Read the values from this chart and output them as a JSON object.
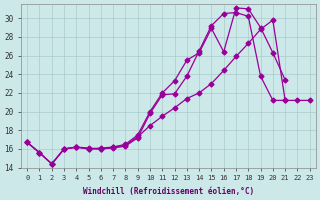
{
  "xlabel": "Windchill (Refroidissement éolien,°C)",
  "background_color": "#cce8e8",
  "grid_color": "#aacccc",
  "line_color": "#990099",
  "yticks": [
    14,
    16,
    18,
    20,
    22,
    24,
    26,
    28,
    30
  ],
  "xticks": [
    0,
    1,
    2,
    3,
    4,
    5,
    6,
    7,
    8,
    9,
    10,
    11,
    12,
    13,
    14,
    15,
    16,
    17,
    18,
    19,
    20,
    21,
    22,
    23
  ],
  "series": [
    {
      "x": [
        0,
        1,
        2,
        3,
        4,
        5,
        6,
        7,
        8,
        9,
        10,
        11,
        12,
        13,
        14,
        15,
        16,
        17,
        18,
        19,
        20,
        21,
        22,
        23
      ],
      "y": [
        16.7,
        15.6,
        14.4,
        16.0,
        16.2,
        16.0,
        16.1,
        16.2,
        16.4,
        17.3,
        18.5,
        19.5,
        20.4,
        21.4,
        22.0,
        23.0,
        24.4,
        25.9,
        27.3,
        28.8,
        29.8,
        21.2,
        21.2,
        21.2
      ]
    },
    {
      "x": [
        0,
        1,
        2,
        3,
        4,
        5,
        6,
        7,
        8,
        9,
        10,
        11,
        12,
        13,
        14,
        15,
        16,
        17,
        18,
        19,
        20,
        21
      ],
      "y": [
        16.7,
        15.6,
        14.4,
        16.0,
        16.2,
        16.0,
        16.0,
        16.1,
        16.3,
        17.2,
        19.8,
        21.8,
        21.9,
        23.8,
        26.5,
        29.2,
        30.5,
        30.6,
        30.2,
        23.8,
        21.2,
        21.2
      ]
    },
    {
      "x": [
        0,
        1,
        2,
        3,
        4,
        5,
        6,
        7,
        8,
        9,
        10,
        11,
        12,
        13,
        14,
        15,
        16,
        17,
        18,
        19,
        20,
        21
      ],
      "y": [
        16.7,
        15.6,
        14.4,
        16.0,
        16.2,
        16.1,
        16.0,
        16.2,
        16.5,
        17.5,
        20.0,
        22.0,
        23.3,
        25.5,
        26.3,
        28.9,
        26.4,
        31.1,
        31.0,
        29.0,
        26.3,
        23.4
      ]
    }
  ],
  "marker": "D",
  "marker_size": 2.5,
  "line_width": 0.9
}
